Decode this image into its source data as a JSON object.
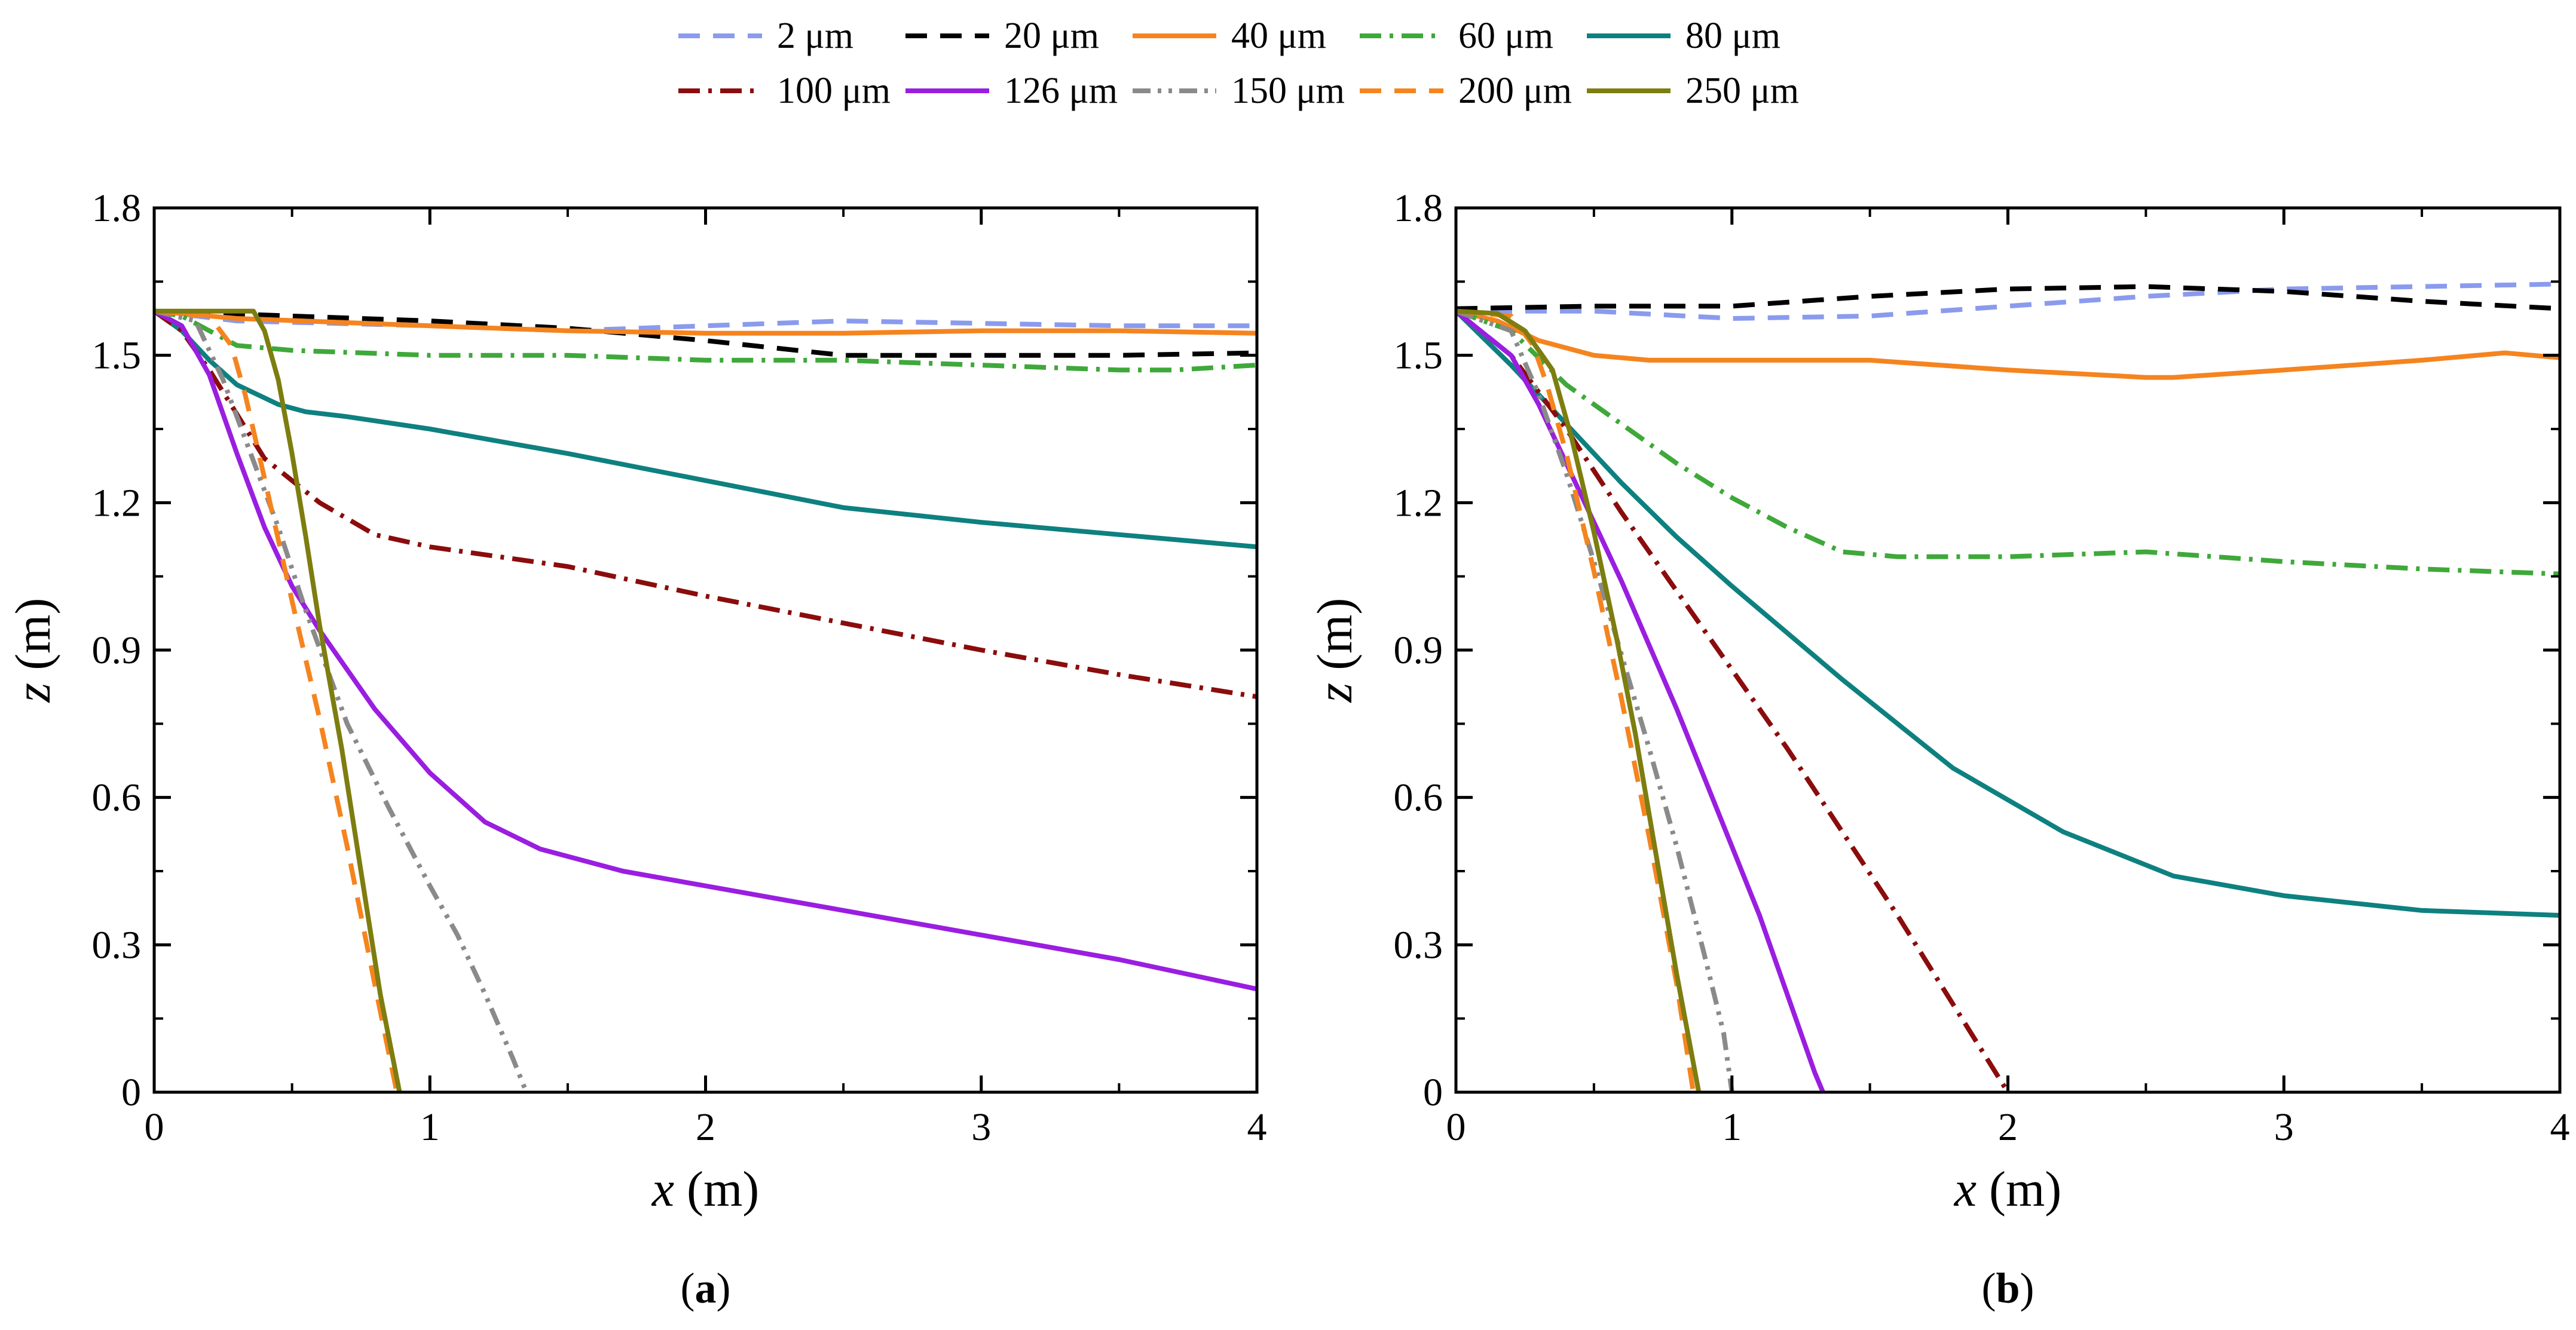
{
  "legend": {
    "items": [
      {
        "label": "2 μm",
        "color": "#8a9bee",
        "dash": "dashed"
      },
      {
        "label": "20 μm",
        "color": "#000000",
        "dash": "dashed"
      },
      {
        "label": "40 μm",
        "color": "#f5841f",
        "dash": "solid"
      },
      {
        "label": "60 μm",
        "color": "#3fa83a",
        "dash": "dashdot"
      },
      {
        "label": "80 μm",
        "color": "#0e8080",
        "dash": "solid"
      },
      {
        "label": "100 μm",
        "color": "#8b0c0c",
        "dash": "dashdot"
      },
      {
        "label": "126 μm",
        "color": "#9a1ee0",
        "dash": "solid"
      },
      {
        "label": "150 μm",
        "color": "#8a8a8a",
        "dash": "dashdotdot"
      },
      {
        "label": "200 μm",
        "color": "#f5841f",
        "dash": "dashed"
      },
      {
        "label": "250 μm",
        "color": "#7d7d10",
        "dash": "solid"
      }
    ]
  },
  "chart_data": [
    {
      "type": "line",
      "panel_label": "a",
      "xlabel_var": "x",
      "xlabel_unit": " (m)",
      "ylabel_var": "z",
      "ylabel_unit": " (m)",
      "xlim": [
        0,
        4
      ],
      "ylim": [
        0,
        1.8
      ],
      "xticks": [
        0,
        1,
        2,
        3,
        4
      ],
      "xtick_labels": [
        "0",
        "1",
        "2",
        "3",
        "4"
      ],
      "yticks": [
        0,
        0.3,
        0.6,
        0.9,
        1.2,
        1.5,
        1.8
      ],
      "ytick_labels": [
        "0",
        "0.3",
        "0.6",
        "0.9",
        "1.2",
        "1.5",
        "1.8"
      ],
      "series": [
        {
          "name": "2 μm",
          "x": [
            0,
            0.3,
            1.0,
            1.5,
            2.0,
            2.5,
            3.0,
            3.5,
            4.0
          ],
          "y": [
            1.59,
            1.57,
            1.56,
            1.55,
            1.56,
            1.57,
            1.565,
            1.56,
            1.56
          ]
        },
        {
          "name": "20 μm",
          "x": [
            0,
            0.5,
            1.0,
            1.5,
            2.0,
            2.5,
            3.0,
            3.5,
            4.0
          ],
          "y": [
            1.59,
            1.58,
            1.57,
            1.555,
            1.53,
            1.5,
            1.5,
            1.5,
            1.505
          ]
        },
        {
          "name": "40 μm",
          "x": [
            0,
            0.3,
            1.0,
            1.5,
            2.0,
            2.5,
            3.0,
            3.5,
            4.0
          ],
          "y": [
            1.59,
            1.575,
            1.56,
            1.55,
            1.545,
            1.545,
            1.55,
            1.55,
            1.545
          ]
        },
        {
          "name": "60 μm",
          "x": [
            0,
            0.1,
            0.2,
            0.3,
            0.5,
            1.0,
            1.5,
            2.0,
            2.5,
            3.0,
            3.5,
            3.7,
            4.0
          ],
          "y": [
            1.59,
            1.58,
            1.55,
            1.52,
            1.51,
            1.5,
            1.5,
            1.49,
            1.49,
            1.48,
            1.47,
            1.47,
            1.48
          ]
        },
        {
          "name": "80 μm",
          "x": [
            0,
            0.1,
            0.2,
            0.3,
            0.45,
            0.55,
            0.7,
            1.0,
            1.5,
            2.0,
            2.5,
            3.0,
            3.5,
            4.0
          ],
          "y": [
            1.59,
            1.55,
            1.49,
            1.44,
            1.4,
            1.385,
            1.375,
            1.35,
            1.3,
            1.245,
            1.19,
            1.16,
            1.135,
            1.11
          ]
        },
        {
          "name": "100 μm",
          "x": [
            0,
            0.1,
            0.2,
            0.3,
            0.4,
            0.6,
            0.8,
            1.0,
            1.5,
            2.0,
            2.5,
            3.0,
            3.5,
            4.0
          ],
          "y": [
            1.59,
            1.55,
            1.47,
            1.38,
            1.29,
            1.2,
            1.135,
            1.11,
            1.07,
            1.01,
            0.955,
            0.9,
            0.85,
            0.805
          ]
        },
        {
          "name": "126 μm",
          "x": [
            0,
            0.1,
            0.2,
            0.3,
            0.4,
            0.5,
            0.6,
            0.8,
            1.0,
            1.2,
            1.4,
            1.7,
            2.0,
            2.5,
            3.0,
            3.5,
            4.0
          ],
          "y": [
            1.59,
            1.56,
            1.46,
            1.3,
            1.15,
            1.03,
            0.94,
            0.78,
            0.65,
            0.55,
            0.495,
            0.45,
            0.42,
            0.37,
            0.32,
            0.27,
            0.21
          ]
        },
        {
          "name": "150 μm",
          "x": [
            0,
            0.15,
            0.25,
            0.35,
            0.45,
            0.55,
            0.7,
            0.85,
            1.0,
            1.1,
            1.2,
            1.3,
            1.35
          ],
          "y": [
            1.59,
            1.57,
            1.45,
            1.3,
            1.15,
            0.98,
            0.75,
            0.58,
            0.42,
            0.32,
            0.2,
            0.07,
            0
          ]
        },
        {
          "name": "200 μm",
          "x": [
            0,
            0.2,
            0.28,
            0.33,
            0.4,
            0.5,
            0.6,
            0.7,
            0.8,
            0.88
          ],
          "y": [
            1.59,
            1.58,
            1.52,
            1.42,
            1.25,
            1.0,
            0.76,
            0.5,
            0.22,
            0
          ]
        },
        {
          "name": "250 μm",
          "x": [
            0,
            0.3,
            0.36,
            0.4,
            0.45,
            0.5,
            0.55,
            0.6,
            0.68,
            0.75,
            0.82,
            0.89
          ],
          "y": [
            1.59,
            1.59,
            1.59,
            1.55,
            1.45,
            1.3,
            1.13,
            0.95,
            0.7,
            0.45,
            0.2,
            0
          ]
        }
      ]
    },
    {
      "type": "line",
      "panel_label": "b",
      "xlabel_var": "x",
      "xlabel_unit": " (m)",
      "ylabel_var": "z",
      "ylabel_unit": " (m)",
      "xlim": [
        0,
        4
      ],
      "ylim": [
        0,
        1.8
      ],
      "xticks": [
        0,
        1,
        2,
        3,
        4
      ],
      "xtick_labels": [
        "0",
        "1",
        "2",
        "3",
        "4"
      ],
      "yticks": [
        0,
        0.3,
        0.6,
        0.9,
        1.2,
        1.5,
        1.8
      ],
      "ytick_labels": [
        "0",
        "0.3",
        "0.6",
        "0.9",
        "1.2",
        "1.5",
        "1.8"
      ],
      "series": [
        {
          "name": "2 μm",
          "x": [
            0,
            0.5,
            1.0,
            1.5,
            2.0,
            2.5,
            3.0,
            3.5,
            4.0
          ],
          "y": [
            1.59,
            1.59,
            1.575,
            1.58,
            1.6,
            1.62,
            1.635,
            1.64,
            1.645
          ]
        },
        {
          "name": "20 μm",
          "x": [
            0,
            0.5,
            1.0,
            1.5,
            2.0,
            2.5,
            3.0,
            3.5,
            4.0
          ],
          "y": [
            1.595,
            1.6,
            1.6,
            1.62,
            1.635,
            1.64,
            1.63,
            1.61,
            1.595
          ]
        },
        {
          "name": "40 μm",
          "x": [
            0,
            0.15,
            0.3,
            0.5,
            0.7,
            1.0,
            1.5,
            2.0,
            2.5,
            2.6,
            3.0,
            3.5,
            3.8,
            4.0
          ],
          "y": [
            1.59,
            1.57,
            1.53,
            1.5,
            1.49,
            1.49,
            1.49,
            1.47,
            1.455,
            1.455,
            1.47,
            1.49,
            1.505,
            1.495
          ]
        },
        {
          "name": "60 μm",
          "x": [
            0,
            0.2,
            0.4,
            0.6,
            0.8,
            1.0,
            1.2,
            1.4,
            1.6,
            2.0,
            2.5,
            3.0,
            3.5,
            4.0
          ],
          "y": [
            1.59,
            1.55,
            1.44,
            1.36,
            1.28,
            1.21,
            1.15,
            1.1,
            1.09,
            1.09,
            1.1,
            1.08,
            1.065,
            1.055
          ]
        },
        {
          "name": "80 μm",
          "x": [
            0,
            0.2,
            0.4,
            0.6,
            0.8,
            1.0,
            1.4,
            1.8,
            2.2,
            2.6,
            3.0,
            3.5,
            4.0
          ],
          "y": [
            1.59,
            1.48,
            1.36,
            1.24,
            1.13,
            1.03,
            0.84,
            0.66,
            0.53,
            0.44,
            0.4,
            0.37,
            0.36
          ]
        },
        {
          "name": "100 μm",
          "x": [
            0,
            0.2,
            0.4,
            0.6,
            0.8,
            1.0,
            1.2,
            1.4,
            1.6,
            1.8,
            2.0
          ],
          "y": [
            1.59,
            1.5,
            1.35,
            1.18,
            1.02,
            0.86,
            0.7,
            0.53,
            0.36,
            0.18,
            0
          ]
        },
        {
          "name": "126 μm",
          "x": [
            0,
            0.2,
            0.3,
            0.4,
            0.5,
            0.6,
            0.7,
            0.8,
            0.9,
            1.0,
            1.1,
            1.2,
            1.3,
            1.33
          ],
          "y": [
            1.59,
            1.5,
            1.4,
            1.28,
            1.16,
            1.04,
            0.91,
            0.78,
            0.64,
            0.5,
            0.36,
            0.2,
            0.04,
            0
          ]
        },
        {
          "name": "150 μm",
          "x": [
            0,
            0.2,
            0.3,
            0.4,
            0.5,
            0.6,
            0.7,
            0.8,
            0.9,
            0.97,
            1.0
          ],
          "y": [
            1.59,
            1.55,
            1.42,
            1.26,
            1.08,
            0.89,
            0.7,
            0.5,
            0.28,
            0.12,
            0
          ]
        },
        {
          "name": "200 μm",
          "x": [
            0,
            0.2,
            0.28,
            0.33,
            0.4,
            0.5,
            0.6,
            0.7,
            0.8,
            0.86
          ],
          "y": [
            1.59,
            1.58,
            1.52,
            1.44,
            1.3,
            1.06,
            0.8,
            0.52,
            0.22,
            0
          ]
        },
        {
          "name": "250 μm",
          "x": [
            0,
            0.15,
            0.25,
            0.35,
            0.42,
            0.5,
            0.58,
            0.65,
            0.72,
            0.8,
            0.88
          ],
          "y": [
            1.59,
            1.585,
            1.55,
            1.47,
            1.33,
            1.14,
            0.93,
            0.73,
            0.5,
            0.24,
            0
          ]
        }
      ]
    }
  ]
}
